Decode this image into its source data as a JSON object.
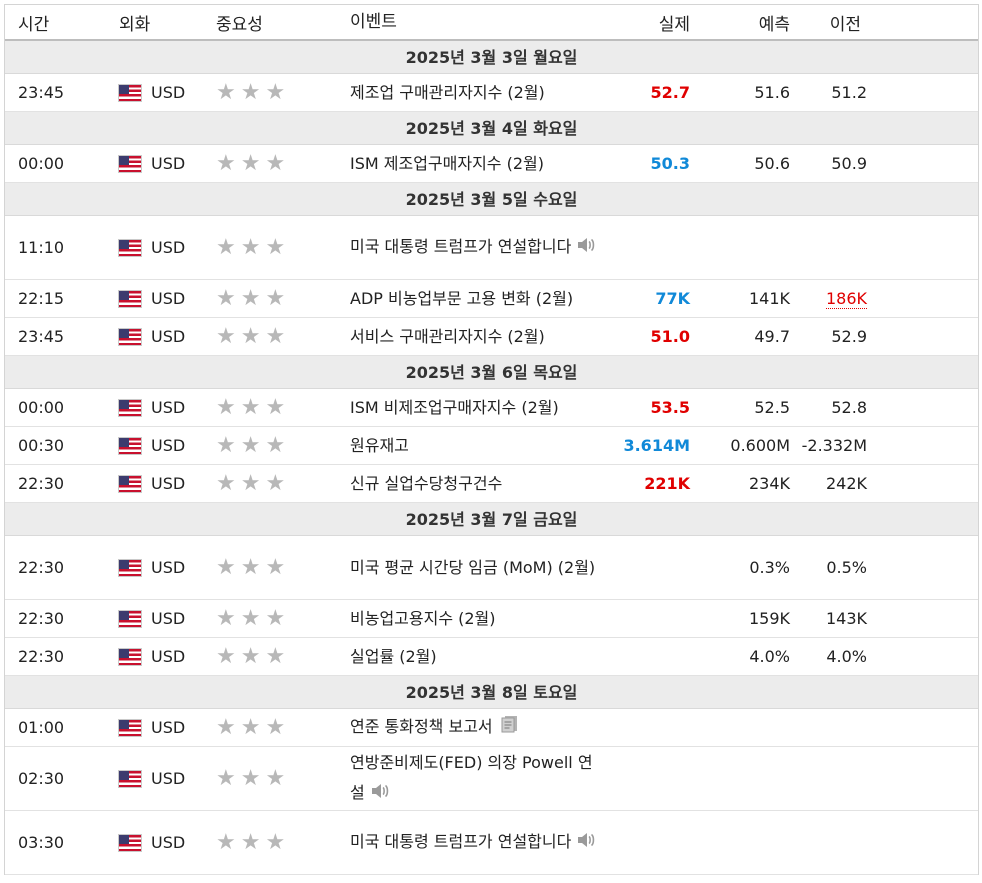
{
  "columns": {
    "time": "시간",
    "currency": "외화",
    "importance": "중요성",
    "event": "이벤트",
    "actual": "실제",
    "forecast": "예측",
    "previous": "이전"
  },
  "colors": {
    "actual_up": "#e00000",
    "actual_down": "#1089d8",
    "star": "#b8b8b8",
    "date_bg": "#ececec"
  },
  "days": [
    {
      "date": "2025년 3월 3일 월요일",
      "rows": [
        {
          "time": "23:45",
          "currency": "USD",
          "event": "제조업 구매관리자지수 (2월)",
          "actual": "52.7",
          "actual_color": "red",
          "forecast": "51.6",
          "previous": "51.2",
          "icon": "",
          "tall": false
        }
      ]
    },
    {
      "date": "2025년 3월 4일 화요일",
      "rows": [
        {
          "time": "00:00",
          "currency": "USD",
          "event": "ISM 제조업구매자지수 (2월)",
          "actual": "50.3",
          "actual_color": "blue",
          "forecast": "50.6",
          "previous": "50.9",
          "icon": "",
          "tall": false
        }
      ]
    },
    {
      "date": "2025년 3월 5일 수요일",
      "rows": [
        {
          "time": "11:10",
          "currency": "USD",
          "event": "미국 대통령 트럼프가 연설합니다",
          "actual": "",
          "actual_color": "",
          "forecast": "",
          "previous": "",
          "icon": "speaker-icon",
          "tall": true
        },
        {
          "time": "22:15",
          "currency": "USD",
          "event": "ADP 비농업부문 고용 변화 (2월)",
          "actual": "77K",
          "actual_color": "blue",
          "forecast": "141K",
          "previous": "186K",
          "previous_color": "red",
          "icon": "",
          "tall": false
        },
        {
          "time": "23:45",
          "currency": "USD",
          "event": "서비스 구매관리자지수 (2월)",
          "actual": "51.0",
          "actual_color": "red",
          "forecast": "49.7",
          "previous": "52.9",
          "icon": "",
          "tall": false
        }
      ]
    },
    {
      "date": "2025년 3월 6일 목요일",
      "rows": [
        {
          "time": "00:00",
          "currency": "USD",
          "event": "ISM 비제조업구매자지수 (2월)",
          "actual": "53.5",
          "actual_color": "red",
          "forecast": "52.5",
          "previous": "52.8",
          "icon": "",
          "tall": false
        },
        {
          "time": "00:30",
          "currency": "USD",
          "event": "원유재고",
          "actual": "3.614M",
          "actual_color": "blue",
          "forecast": "0.600M",
          "previous": "-2.332M",
          "icon": "",
          "tall": false
        },
        {
          "time": "22:30",
          "currency": "USD",
          "event": "신규 실업수당청구건수",
          "actual": "221K",
          "actual_color": "red",
          "forecast": "234K",
          "previous": "242K",
          "icon": "",
          "tall": false
        }
      ]
    },
    {
      "date": "2025년 3월 7일 금요일",
      "rows": [
        {
          "time": "22:30",
          "currency": "USD",
          "event": "미국 평균 시간당 임금 (MoM) (2월)",
          "actual": "",
          "actual_color": "",
          "forecast": "0.3%",
          "previous": "0.5%",
          "icon": "",
          "tall": true
        },
        {
          "time": "22:30",
          "currency": "USD",
          "event": "비농업고용지수 (2월)",
          "actual": "",
          "actual_color": "",
          "forecast": "159K",
          "previous": "143K",
          "icon": "",
          "tall": false
        },
        {
          "time": "22:30",
          "currency": "USD",
          "event": "실업률 (2월)",
          "actual": "",
          "actual_color": "",
          "forecast": "4.0%",
          "previous": "4.0%",
          "icon": "",
          "tall": false
        }
      ]
    },
    {
      "date": "2025년 3월 8일 토요일",
      "rows": [
        {
          "time": "01:00",
          "currency": "USD",
          "event": "연준 통화정책 보고서",
          "actual": "",
          "actual_color": "",
          "forecast": "",
          "previous": "",
          "icon": "document-icon",
          "tall": false
        },
        {
          "time": "02:30",
          "currency": "USD",
          "event": "연방준비제도(FED) 의장 Powell 연설",
          "actual": "",
          "actual_color": "",
          "forecast": "",
          "previous": "",
          "icon": "speaker-icon",
          "tall": true
        },
        {
          "time": "03:30",
          "currency": "USD",
          "event": "미국 대통령 트럼프가 연설합니다",
          "actual": "",
          "actual_color": "",
          "forecast": "",
          "previous": "",
          "icon": "speaker-icon",
          "tall": true
        }
      ]
    }
  ]
}
